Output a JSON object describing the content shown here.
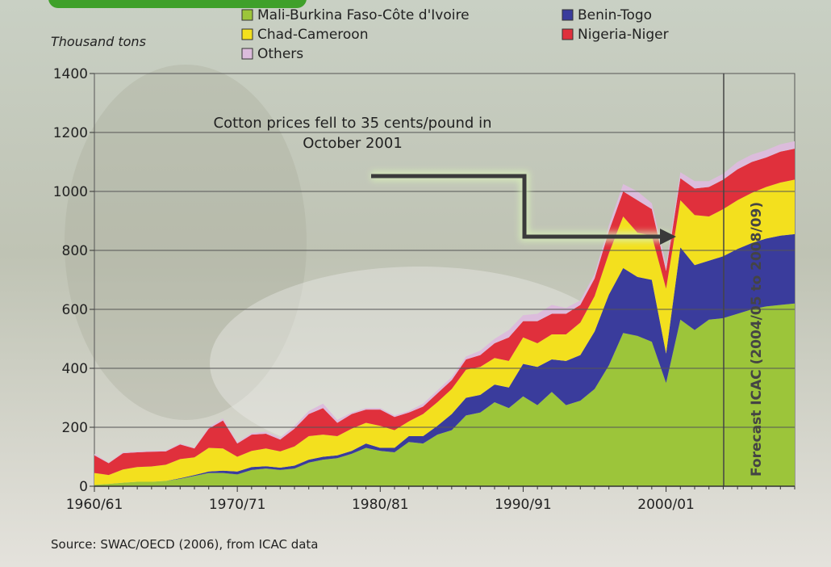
{
  "chart_data": {
    "type": "stacked-area",
    "axis_label": "Thousand tons",
    "annotation": "Cotton prices fell to 35 cents/pound in October 2001",
    "forecast_label": "Forecast ICAC (2004/05 to 2008/09)",
    "source": "Source: SWAC/OECD (2006), from ICAC data",
    "categories": [
      "1960/61",
      null,
      null,
      null,
      null,
      null,
      null,
      null,
      null,
      null,
      "1970/71",
      null,
      null,
      null,
      null,
      null,
      null,
      null,
      null,
      null,
      "1980/81",
      null,
      null,
      null,
      null,
      null,
      null,
      null,
      null,
      null,
      "1990/91",
      null,
      null,
      null,
      null,
      null,
      null,
      null,
      null,
      null,
      "2000/01",
      null,
      null,
      null,
      null,
      null,
      null,
      null,
      null,
      null
    ],
    "series": [
      {
        "name": "Mali-Burkina Faso-Côte d'Ivoire",
        "color": "#9cc53a",
        "values": [
          5,
          8,
          12,
          15,
          15,
          18,
          25,
          35,
          45,
          45,
          40,
          55,
          60,
          55,
          60,
          80,
          90,
          95,
          110,
          130,
          120,
          115,
          150,
          145,
          175,
          190,
          240,
          250,
          285,
          265,
          305,
          275,
          320,
          275,
          290,
          330,
          410,
          520,
          510,
          490,
          350,
          565,
          530,
          565,
          570,
          585,
          600,
          610,
          615,
          620
        ]
      },
      {
        "name": "Benin-Togo",
        "color": "#3a3c9c",
        "values": [
          0,
          0,
          0,
          0,
          0,
          0,
          2,
          3,
          5,
          8,
          10,
          10,
          8,
          8,
          10,
          10,
          10,
          10,
          10,
          15,
          10,
          15,
          20,
          25,
          30,
          55,
          60,
          60,
          60,
          70,
          110,
          130,
          110,
          150,
          155,
          195,
          240,
          220,
          200,
          210,
          100,
          245,
          220,
          200,
          210,
          220,
          225,
          230,
          235,
          235
        ]
      },
      {
        "name": "Chad-Cameroon",
        "color": "#f3e01e",
        "values": [
          40,
          30,
          45,
          50,
          52,
          55,
          65,
          60,
          80,
          75,
          50,
          55,
          60,
          55,
          65,
          80,
          75,
          65,
          75,
          70,
          75,
          60,
          50,
          75,
          80,
          85,
          95,
          95,
          90,
          90,
          90,
          80,
          85,
          90,
          110,
          120,
          140,
          175,
          150,
          150,
          220,
          160,
          170,
          150,
          160,
          165,
          170,
          175,
          180,
          185
        ]
      },
      {
        "name": "Nigeria-Niger",
        "color": "#e0303c",
        "values": [
          60,
          40,
          55,
          50,
          50,
          45,
          50,
          30,
          65,
          95,
          45,
          55,
          50,
          40,
          60,
          75,
          90,
          45,
          50,
          45,
          55,
          45,
          30,
          25,
          30,
          30,
          35,
          40,
          50,
          80,
          55,
          75,
          70,
          70,
          60,
          60,
          75,
          85,
          110,
          90,
          60,
          75,
          90,
          100,
          100,
          105,
          105,
          100,
          105,
          105
        ]
      },
      {
        "name": "Others",
        "color": "#dcbcdc",
        "values": [
          5,
          2,
          3,
          3,
          3,
          3,
          3,
          2,
          5,
          7,
          5,
          5,
          7,
          7,
          10,
          10,
          15,
          10,
          5,
          5,
          5,
          5,
          5,
          10,
          10,
          10,
          10,
          15,
          15,
          25,
          20,
          25,
          30,
          20,
          15,
          15,
          20,
          25,
          30,
          20,
          20,
          20,
          25,
          20,
          20,
          25,
          25,
          25,
          25,
          25
        ]
      }
    ],
    "ylim": [
      0,
      1400
    ],
    "yticks": [
      0,
      200,
      400,
      600,
      800,
      1000,
      1200,
      1400
    ],
    "grid": true
  }
}
